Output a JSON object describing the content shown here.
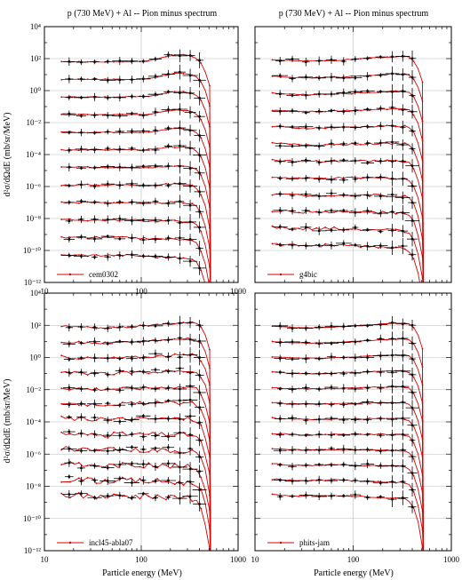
{
  "figure": {
    "titles": [
      "p (730 MeV) + Al -- Pion minus spectrum",
      "p (730 MeV) + Al -- Pion minus spectrum"
    ],
    "ylabel": "d²σ/dΩdE (mb/sr/MeV)",
    "xlabel": "Particle energy (MeV)"
  },
  "chart_data": [
    {
      "type": "line",
      "panel": "top-left",
      "title": "p (730 MeV) + Al -- Pion minus spectrum",
      "xlabel": "",
      "ylabel": "d²σ/dΩdE (mb/sr/MeV)",
      "x_scale": "log",
      "y_scale": "log",
      "xlim": [
        10,
        1000
      ],
      "ylim": [
        1e-12,
        10000.0
      ],
      "x_ticks": [
        "10",
        "100",
        "1000"
      ],
      "y_ticks": [
        "10⁴",
        "10²",
        "10⁰",
        "10⁻²",
        "10⁻⁴",
        "10⁻⁶",
        "10⁻⁸",
        "10⁻¹⁰",
        "10⁻¹²"
      ],
      "legend": "bottom-left",
      "grid": true,
      "series": [
        {
          "name": "cem0302",
          "color": "#d40000",
          "style": "line-with-points"
        },
        {
          "name": "data",
          "color": "#000000",
          "style": "error-bars"
        }
      ],
      "n_curves": 12,
      "curve_start_log10": 1.8,
      "curve_step_log10": -1.1,
      "endpoint_mev": 560,
      "shape": "peak",
      "noise": 0.04
    },
    {
      "type": "line",
      "panel": "top-right",
      "title": "p (730 MeV) + Al -- Pion minus spectrum",
      "xlabel": "",
      "ylabel": "",
      "x_scale": "log",
      "y_scale": "log",
      "xlim": [
        10,
        1000
      ],
      "ylim": [
        1e-12,
        10000.0
      ],
      "x_ticks": [],
      "y_ticks": [],
      "legend": "bottom-left",
      "grid": true,
      "series": [
        {
          "name": "g4bic",
          "color": "#d40000",
          "style": "line-with-points"
        },
        {
          "name": "data",
          "color": "#000000",
          "style": "error-bars"
        }
      ],
      "n_curves": 12,
      "curve_start_log10": 2.0,
      "curve_step_log10": -1.05,
      "endpoint_mev": 560,
      "shape": "ragged",
      "noise": 0.06
    },
    {
      "type": "line",
      "panel": "bottom-left",
      "title": "",
      "xlabel": "Particle energy (MeV)",
      "ylabel": "d²σ/dΩdE (mb/sr/MeV)",
      "x_scale": "log",
      "y_scale": "log",
      "xlim": [
        10,
        1000
      ],
      "ylim": [
        1e-12,
        10000.0
      ],
      "x_ticks": [
        "10",
        "100",
        "1000"
      ],
      "y_ticks": [
        "10⁴",
        "10²",
        "10⁰",
        "10⁻²",
        "10⁻⁴",
        "10⁻⁶",
        "10⁻⁸",
        "10⁻¹⁰",
        "10⁻¹²"
      ],
      "legend": "bottom-left",
      "grid": true,
      "series": [
        {
          "name": "incl45-abla07",
          "color": "#d40000",
          "style": "line-with-points"
        },
        {
          "name": "data",
          "color": "#000000",
          "style": "error-bars"
        }
      ],
      "n_curves": 12,
      "curve_start_log10": 2.0,
      "curve_step_log10": -0.95,
      "endpoint_mev": 560,
      "shape": "noisy-flat",
      "noise": 0.12
    },
    {
      "type": "line",
      "panel": "bottom-right",
      "title": "",
      "xlabel": "Particle energy (MeV)",
      "ylabel": "",
      "x_scale": "log",
      "y_scale": "log",
      "xlim": [
        10,
        1000
      ],
      "ylim": [
        1e-12,
        10000.0
      ],
      "x_ticks": [
        "10",
        "100",
        "1000"
      ],
      "y_ticks": [],
      "legend": "bottom-left",
      "grid": true,
      "series": [
        {
          "name": "phits-jam",
          "color": "#d40000",
          "style": "line-with-points"
        },
        {
          "name": "data",
          "color": "#000000",
          "style": "error-bars"
        }
      ],
      "n_curves": 12,
      "curve_start_log10": 2.0,
      "curve_step_log10": -0.95,
      "endpoint_mev": 560,
      "shape": "smooth",
      "noise": 0.03
    }
  ]
}
